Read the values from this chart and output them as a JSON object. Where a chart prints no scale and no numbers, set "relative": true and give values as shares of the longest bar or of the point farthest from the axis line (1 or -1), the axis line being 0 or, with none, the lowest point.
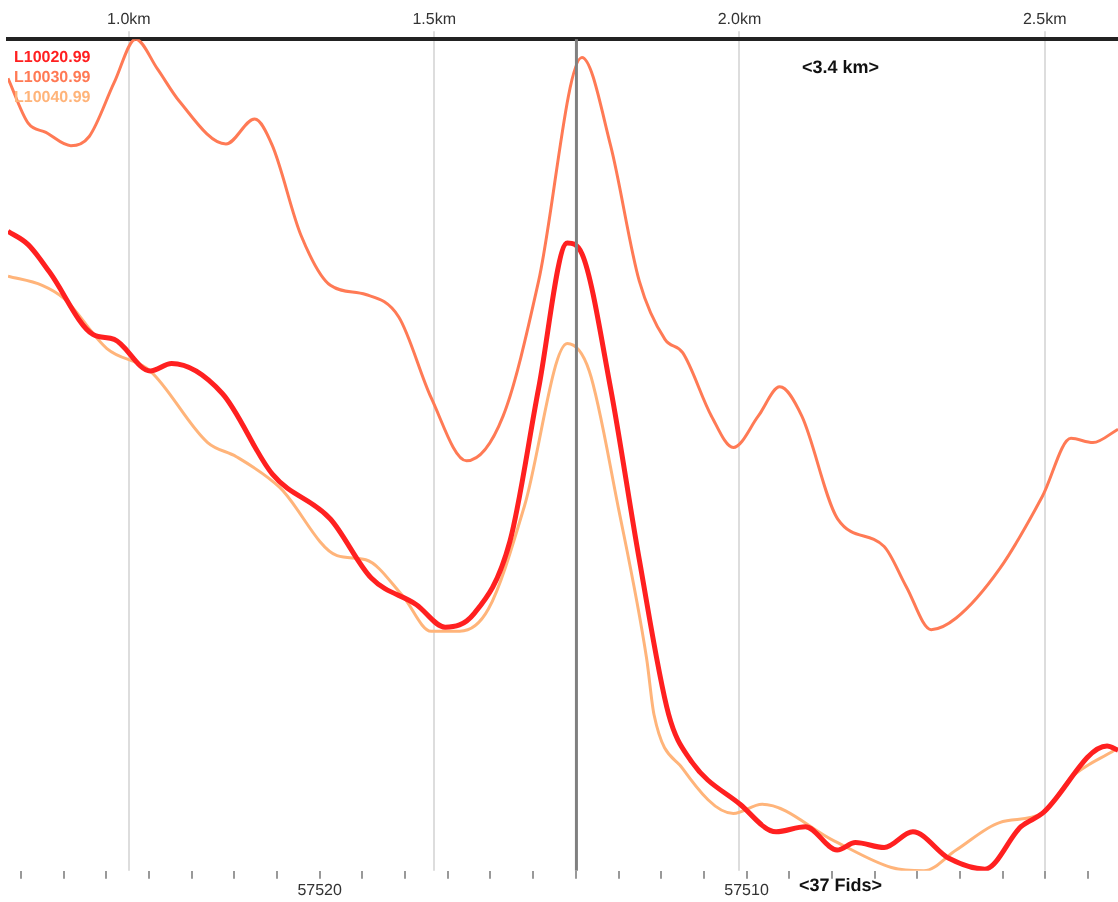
{
  "chart_data": {
    "type": "line",
    "relative": true,
    "legend": "top left",
    "grid": "x",
    "marker": "none",
    "xlim": [
      0.802,
      2.62
    ],
    "xticks": [
      {
        "value": 1.0,
        "label": "1.0km"
      },
      {
        "value": 1.5,
        "label": "1.5km"
      },
      {
        "value": 2.0,
        "label": "2.0km"
      },
      {
        "value": 2.5,
        "label": "2.5km"
      }
    ],
    "x2lim": [
      57527.3,
      57501.3
    ],
    "x2ticks": [
      {
        "value": 57527,
        "label": null
      },
      {
        "value": 57526,
        "label": null
      },
      {
        "value": 57525,
        "label": null
      },
      {
        "value": 57524,
        "label": null
      },
      {
        "value": 57523,
        "label": null
      },
      {
        "value": 57522,
        "label": null
      },
      {
        "value": 57521,
        "label": null
      },
      {
        "value": 57520,
        "label": "57520"
      },
      {
        "value": 57519,
        "label": null
      },
      {
        "value": 57518,
        "label": null
      },
      {
        "value": 57517,
        "label": null
      },
      {
        "value": 57516,
        "label": null
      },
      {
        "value": 57515,
        "label": null
      },
      {
        "value": 57514,
        "label": null
      },
      {
        "value": 57513,
        "label": null
      },
      {
        "value": 57512,
        "label": null
      },
      {
        "value": 57511,
        "label": null
      },
      {
        "value": 57510,
        "label": "57510"
      },
      {
        "value": 57509,
        "label": null
      },
      {
        "value": 57508,
        "label": null
      },
      {
        "value": 57507,
        "label": null
      },
      {
        "value": 57506,
        "label": null
      },
      {
        "value": 57505,
        "label": null
      },
      {
        "value": 57504,
        "label": null
      },
      {
        "value": 57503,
        "label": null
      },
      {
        "value": 57502,
        "label": null
      }
    ],
    "ref_lines": [
      {
        "axis": "x",
        "value": 1.733,
        "color": "#808080"
      }
    ],
    "annotations": [
      "<3.4 km>",
      "<37 Fids>"
    ],
    "series": [
      {
        "name": "L10020.99",
        "color": "#ff2020",
        "x": [
          0.802,
          0.835,
          0.87,
          0.941,
          0.976,
          1.035,
          1.07,
          1.153,
          1.235,
          1.33,
          1.397,
          1.471,
          1.518,
          1.565,
          1.624,
          1.671,
          1.718,
          1.742,
          1.789,
          1.836,
          1.884,
          1.919,
          2.001,
          2.06,
          2.108,
          2.16,
          2.19,
          2.237,
          2.284,
          2.343,
          2.402,
          2.461,
          2.496,
          2.602,
          2.62
        ],
        "values": [
          0.769,
          0.753,
          0.72,
          0.645,
          0.639,
          0.601,
          0.61,
          0.574,
          0.477,
          0.423,
          0.352,
          0.32,
          0.293,
          0.309,
          0.396,
          0.58,
          0.755,
          0.742,
          0.58,
          0.374,
          0.188,
          0.134,
          0.08,
          0.047,
          0.053,
          0.025,
          0.034,
          0.028,
          0.047,
          0.015,
          0.002,
          0.053,
          0.069,
          0.15,
          0.145
        ]
      },
      {
        "name": "L10030.99",
        "color": "#ff7a55",
        "x": [
          0.802,
          0.835,
          0.864,
          0.905,
          0.935,
          0.976,
          1.011,
          1.047,
          1.082,
          1.159,
          1.206,
          1.235,
          1.282,
          1.33,
          1.388,
          1.442,
          1.495,
          1.553,
          1.613,
          1.671,
          1.742,
          1.789,
          1.836,
          1.878,
          1.907,
          1.954,
          1.99,
          2.031,
          2.066,
          2.102,
          2.161,
          2.237,
          2.273,
          2.314,
          2.355,
          2.426,
          2.496,
          2.543,
          2.579,
          2.62
        ],
        "values": [
          0.953,
          0.899,
          0.888,
          0.872,
          0.883,
          0.948,
          1.0,
          0.964,
          0.926,
          0.874,
          0.904,
          0.872,
          0.764,
          0.704,
          0.693,
          0.666,
          0.569,
          0.493,
          0.547,
          0.709,
          0.978,
          0.872,
          0.709,
          0.639,
          0.623,
          0.547,
          0.509,
          0.547,
          0.582,
          0.547,
          0.423,
          0.39,
          0.342,
          0.29,
          0.304,
          0.363,
          0.45,
          0.52,
          0.515,
          0.531
        ]
      },
      {
        "name": "L10040.99",
        "color": "#ffb47a",
        "x": [
          0.802,
          0.858,
          0.894,
          0.964,
          1.035,
          1.129,
          1.176,
          1.247,
          1.341,
          1.388,
          1.448,
          1.495,
          1.542,
          1.589,
          1.648,
          1.718,
          1.754,
          1.801,
          1.848,
          1.86,
          1.907,
          1.99,
          2.037,
          2.155,
          2.249,
          2.302,
          2.355,
          2.426,
          2.496,
          2.543,
          2.614
        ],
        "values": [
          0.715,
          0.704,
          0.688,
          0.628,
          0.601,
          0.515,
          0.498,
          0.461,
          0.379,
          0.374,
          0.331,
          0.288,
          0.288,
          0.315,
          0.439,
          0.634,
          0.601,
          0.439,
          0.255,
          0.188,
          0.123,
          0.069,
          0.08,
          0.036,
          0.004,
          0,
          0.025,
          0.058,
          0.069,
          0.112,
          0.145
        ]
      }
    ]
  }
}
